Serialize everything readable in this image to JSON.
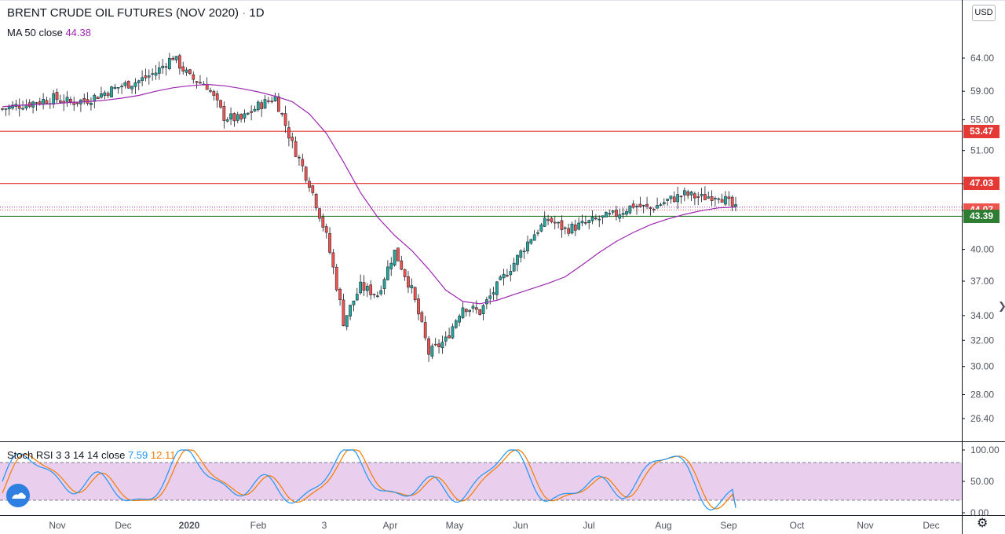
{
  "header": {
    "symbol": "BRENT CRUDE OIL FUTURES (NOV 2020)",
    "separator": "·",
    "interval": "1D"
  },
  "ma": {
    "label": "MA 50 close",
    "value": "44.38",
    "color": "#9c27b0"
  },
  "stoch": {
    "label": "Stoch RSI 3 3 14 14 close",
    "k_value": "7.59",
    "d_value": "12.11",
    "k_color": "#2196f3",
    "d_color": "#f57c00",
    "band_color": "#e1bee7",
    "levels": [
      "100.00",
      "50.00",
      "0.00"
    ]
  },
  "currency_button": "USD",
  "colors": {
    "up": "#26a69a",
    "down": "#ef5350",
    "resistance": "#e53935",
    "support": "#2e7d32",
    "last_price": "#ef5350"
  },
  "price_tags": [
    {
      "label": "53.47",
      "value": 53.47,
      "color": "#e53935"
    },
    {
      "label": "47.03",
      "value": 47.03,
      "color": "#e53935"
    },
    {
      "label": "44.07",
      "value": 44.07,
      "color": "#ef5350"
    },
    {
      "label": "43.39",
      "value": 43.39,
      "color": "#2e7d32"
    }
  ],
  "chart_data": {
    "type": "candlestick",
    "price_axis": {
      "ticks": [
        64,
        59,
        55,
        51,
        47,
        44,
        40,
        37,
        34,
        32,
        30,
        28,
        26.4
      ],
      "tick_labels": [
        "64.00",
        "59.00",
        "55.00",
        "51.00",
        "47.00",
        "44.00",
        "40.00",
        "37.00",
        "34.00",
        "32.00",
        "30.00",
        "28.00",
        "26.40"
      ],
      "scale": "log"
    },
    "time_axis": {
      "labels": [
        "Nov",
        "Dec",
        "2020",
        "Feb",
        "3",
        "Apr",
        "May",
        "Jun",
        "Jul",
        "Aug",
        "Sep",
        "Oct",
        "Nov",
        "Dec"
      ]
    },
    "horizontal_lines": [
      {
        "value": 53.47,
        "color": "#e53935"
      },
      {
        "value": 47.03,
        "color": "#e53935"
      },
      {
        "value": 43.39,
        "color": "#2e7d32"
      }
    ],
    "weekly_closes": [
      56.5,
      57.0,
      57.5,
      58.0,
      57.4,
      57.8,
      58.8,
      59.8,
      60.5,
      61.8,
      64.2,
      61.0,
      59.8,
      55.4,
      55.0,
      56.9,
      58.1,
      51.8,
      47.1,
      41.3,
      33.5,
      36.5,
      35.8,
      39.8,
      36.2,
      31.0,
      32.0,
      34.8,
      34.3,
      36.5,
      38.7,
      41.2,
      43.1,
      42.0,
      42.5,
      43.1,
      43.6,
      44.6,
      44.2,
      45.1,
      45.8,
      45.4,
      45.8,
      44.1
    ],
    "ma50_weekly": [
      56.8,
      57.0,
      57.1,
      57.2,
      57.4,
      57.5,
      57.7,
      58.0,
      58.4,
      59.0,
      59.5,
      59.8,
      60.0,
      59.8,
      59.4,
      58.9,
      58.3,
      57.5,
      55.8,
      53.2,
      49.6,
      46.0,
      43.3,
      41.4,
      39.9,
      38.1,
      36.2,
      35.2,
      35.0,
      35.3,
      35.8,
      36.3,
      36.8,
      37.4,
      38.5,
      39.7,
      40.8,
      41.7,
      42.5,
      43.1,
      43.6,
      44.0,
      44.3,
      44.38
    ],
    "stoch_rsi": {
      "k_last": 7.59,
      "d_last": 12.11,
      "range": [
        0,
        100
      ],
      "bands": [
        20,
        80
      ]
    }
  }
}
